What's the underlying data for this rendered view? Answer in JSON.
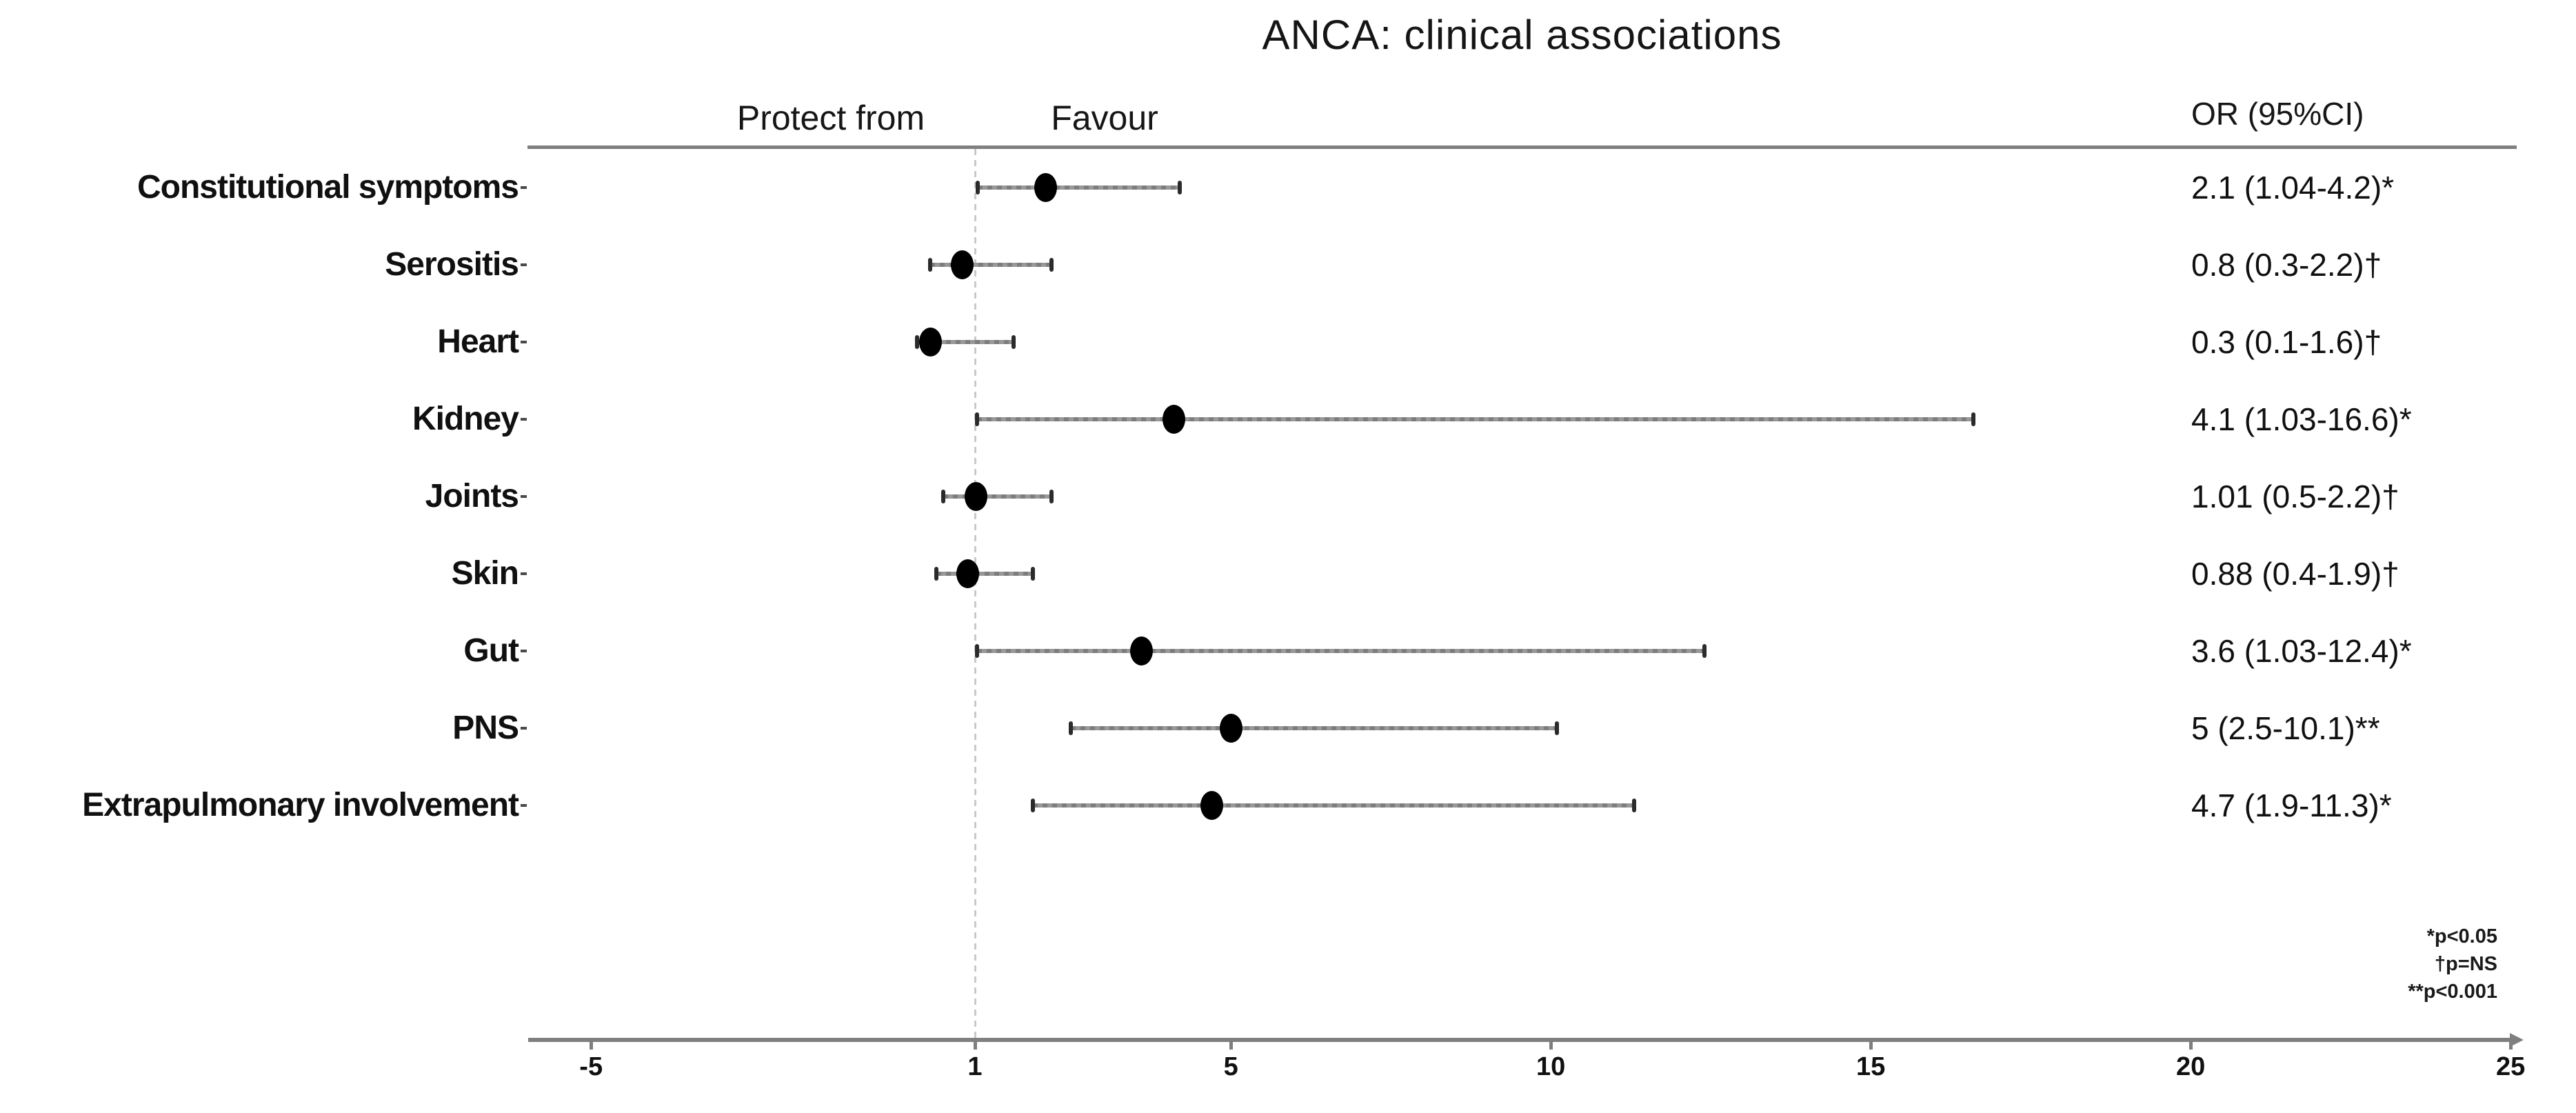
{
  "title": "ANCA: clinical associations",
  "column_headers": {
    "protect_from": "Protect from",
    "favour": "Favour",
    "or_ci": "OR (95%CI)"
  },
  "footnotes": [
    "*p<0.05",
    "†p=NS",
    "**p<0.001"
  ],
  "x_axis": {
    "tick_labels": [
      "-5",
      "1",
      "5",
      "10",
      "15",
      "20",
      "25"
    ],
    "tick_values": [
      -5,
      1,
      5,
      10,
      15,
      20,
      25
    ],
    "reference_value": 1
  },
  "chart_data": {
    "type": "scatter",
    "subtype": "forest-plot",
    "title": "ANCA: clinical associations",
    "xlabel": "",
    "ylabel": "",
    "x_ticks": [
      -5,
      1,
      5,
      10,
      15,
      20,
      25
    ],
    "x_range": [
      -6.5,
      26
    ],
    "reference_line_x": 1,
    "legend": "none",
    "grid": false,
    "rows": [
      {
        "label": "Constitutional symptoms",
        "or": 2.1,
        "ci_low": 1.04,
        "ci_high": 4.2,
        "significance": "*",
        "or_text": "2.1 (1.04-4.2)*"
      },
      {
        "label": "Serositis",
        "or": 0.8,
        "ci_low": 0.3,
        "ci_high": 2.2,
        "significance": "†",
        "or_text": "0.8 (0.3-2.2)†"
      },
      {
        "label": "Heart",
        "or": 0.3,
        "ci_low": 0.1,
        "ci_high": 1.6,
        "significance": "†",
        "or_text": "0.3 (0.1-1.6)†"
      },
      {
        "label": "Kidney",
        "or": 4.1,
        "ci_low": 1.03,
        "ci_high": 16.6,
        "significance": "*",
        "or_text": "4.1 (1.03-16.6)*"
      },
      {
        "label": "Joints",
        "or": 1.01,
        "ci_low": 0.5,
        "ci_high": 2.2,
        "significance": "†",
        "or_text": "1.01 (0.5-2.2)†"
      },
      {
        "label": "Skin",
        "or": 0.88,
        "ci_low": 0.4,
        "ci_high": 1.9,
        "significance": "†",
        "or_text": "0.88 (0.4-1.9)†"
      },
      {
        "label": "Gut",
        "or": 3.6,
        "ci_low": 1.03,
        "ci_high": 12.4,
        "significance": "*",
        "or_text": "3.6 (1.03-12.4)*"
      },
      {
        "label": "PNS",
        "or": 5,
        "ci_low": 2.5,
        "ci_high": 10.1,
        "significance": "**",
        "or_text": "5 (2.5-10.1)**"
      },
      {
        "label": "Extrapulmonary involvement",
        "or": 4.7,
        "ci_low": 1.9,
        "ci_high": 11.3,
        "significance": "*",
        "or_text": "4.7 (1.9-11.3)*"
      }
    ],
    "annotations": [
      "*p<0.05",
      "†p=NS",
      "**p<0.001"
    ]
  },
  "colors": {
    "marker": "#000000",
    "whisker": "#8a8a8a",
    "axis_line": "#7f7f7f",
    "reference_line": "#c9c9c9",
    "text": "#111111",
    "background": "#ffffff"
  }
}
